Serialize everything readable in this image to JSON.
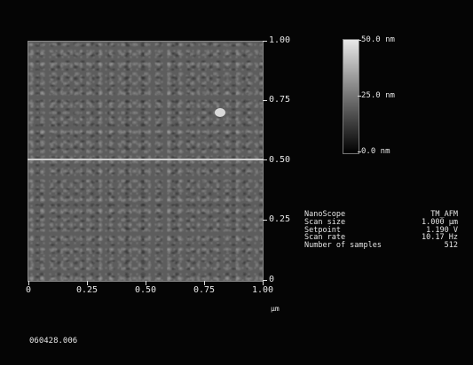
{
  "scan": {
    "y_axis_ticks": [
      "1.00",
      "0.75",
      "0.50",
      "0.25",
      "0"
    ],
    "x_axis_ticks": [
      "0",
      "0.25",
      "0.50",
      "0.75",
      "1.00"
    ],
    "x_unit": "µm"
  },
  "color_scale": {
    "labels": [
      "50.0 nm",
      "25.0 nm",
      "0.0 nm"
    ],
    "top_color": "#e8e8e8",
    "bottom_color": "#000000"
  },
  "info": {
    "instrument": "NanoScope",
    "mode": "TM_AFM",
    "rows": [
      {
        "label": "Scan size",
        "value": "1.000 µm"
      },
      {
        "label": "Setpoint",
        "value": "1.190 V"
      },
      {
        "label": "Scan rate",
        "value": "10.17 Hz"
      },
      {
        "label": "Number of samples",
        "value": "512"
      }
    ]
  },
  "file_id": "060428.006"
}
